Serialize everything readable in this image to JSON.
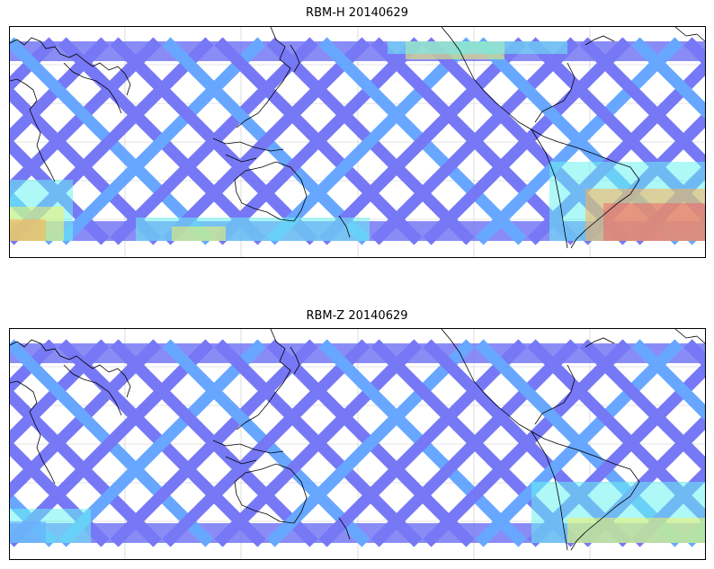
{
  "figure": {
    "panels": [
      {
        "id": "top",
        "title": "RBM-H 20140629",
        "variant": "H"
      },
      {
        "id": "bottom",
        "title": "RBM-Z 20140629",
        "variant": "Z"
      }
    ]
  },
  "colors": {
    "track_low": "#6a6cf5",
    "track_mid": "#5aa0ff",
    "track_cyan": "#5ef0f0",
    "track_yellow": "#f2f25a",
    "track_orange": "#ffaa44",
    "track_red": "#ee5a5a",
    "coastline": "#000000",
    "gridline": "#c8c8c8"
  }
}
